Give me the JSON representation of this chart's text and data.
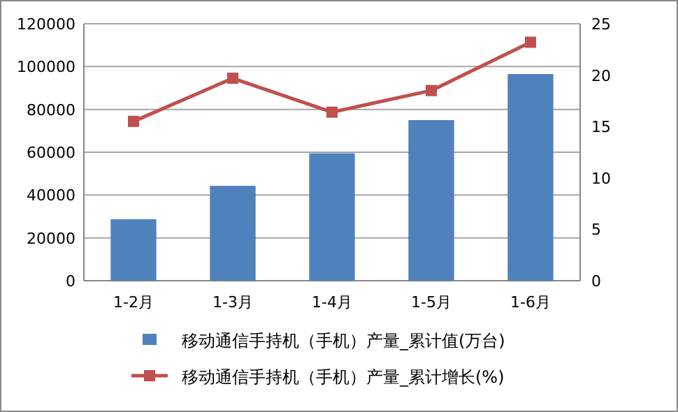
{
  "chart_data": {
    "type": "bar",
    "categories": [
      "1-2月",
      "1-3月",
      "1-4月",
      "1-5月",
      "1-6月"
    ],
    "series": [
      {
        "name": "移动通信手持机（手机）产量_累计值(万台)",
        "color": "#4f81bd",
        "values": [
          28700,
          44300,
          59500,
          75000,
          96500
        ]
      },
      {
        "name": "移动通信手持机（手机）产量_累计增长(%)",
        "type": "line",
        "axis": "y2",
        "color": "#c0504d",
        "values": [
          15.5,
          19.7,
          16.4,
          18.5,
          23.2
        ]
      }
    ],
    "ylim": [
      0,
      120000
    ],
    "yticks": [
      0,
      20000,
      40000,
      60000,
      80000,
      100000,
      120000
    ],
    "y2lim": [
      0,
      25
    ],
    "y2ticks": [
      0,
      5,
      10,
      15,
      20,
      25
    ],
    "grid": "y",
    "legend": "bottom",
    "marker": "square",
    "line_style": "solid"
  }
}
